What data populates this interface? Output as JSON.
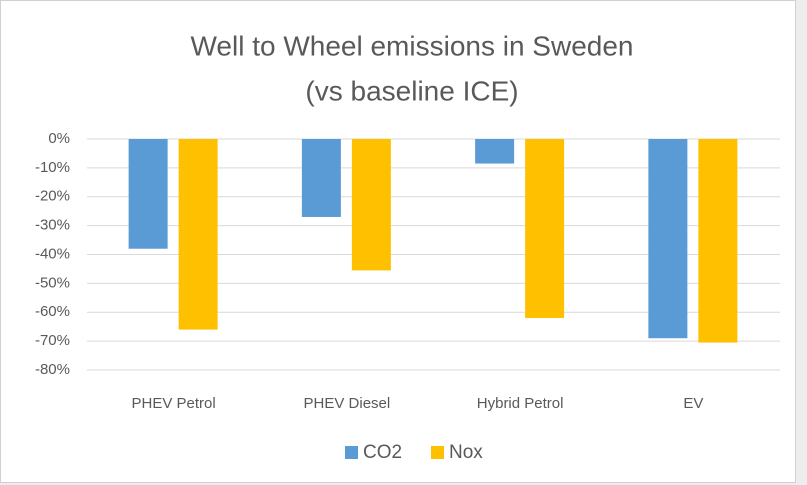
{
  "chart_data": {
    "type": "bar",
    "title": [
      "Well to Wheel emissions in Sweden",
      "(vs baseline ICE)"
    ],
    "categories": [
      "PHEV Petrol",
      "PHEV Diesel",
      "Hybrid Petrol",
      "EV"
    ],
    "series": [
      {
        "name": "CO2",
        "color": "#5b9bd5",
        "values": [
          -38,
          -27,
          -8.5,
          -69
        ]
      },
      {
        "name": "Nox",
        "color": "#ffc000",
        "values": [
          -66,
          -45.5,
          -62,
          -70.5
        ]
      }
    ],
    "ylim": [
      -80,
      0
    ],
    "yticks": [
      {
        "value": 0,
        "label": "0%"
      },
      {
        "value": -10,
        "label": "-10%"
      },
      {
        "value": -20,
        "label": "-20%"
      },
      {
        "value": -30,
        "label": "-30%"
      },
      {
        "value": -40,
        "label": "-40%"
      },
      {
        "value": -50,
        "label": "-50%"
      },
      {
        "value": -60,
        "label": "-60%"
      },
      {
        "value": -70,
        "label": "-70%"
      },
      {
        "value": -80,
        "label": "-80%"
      }
    ],
    "grid": true,
    "legend": "bottom"
  }
}
